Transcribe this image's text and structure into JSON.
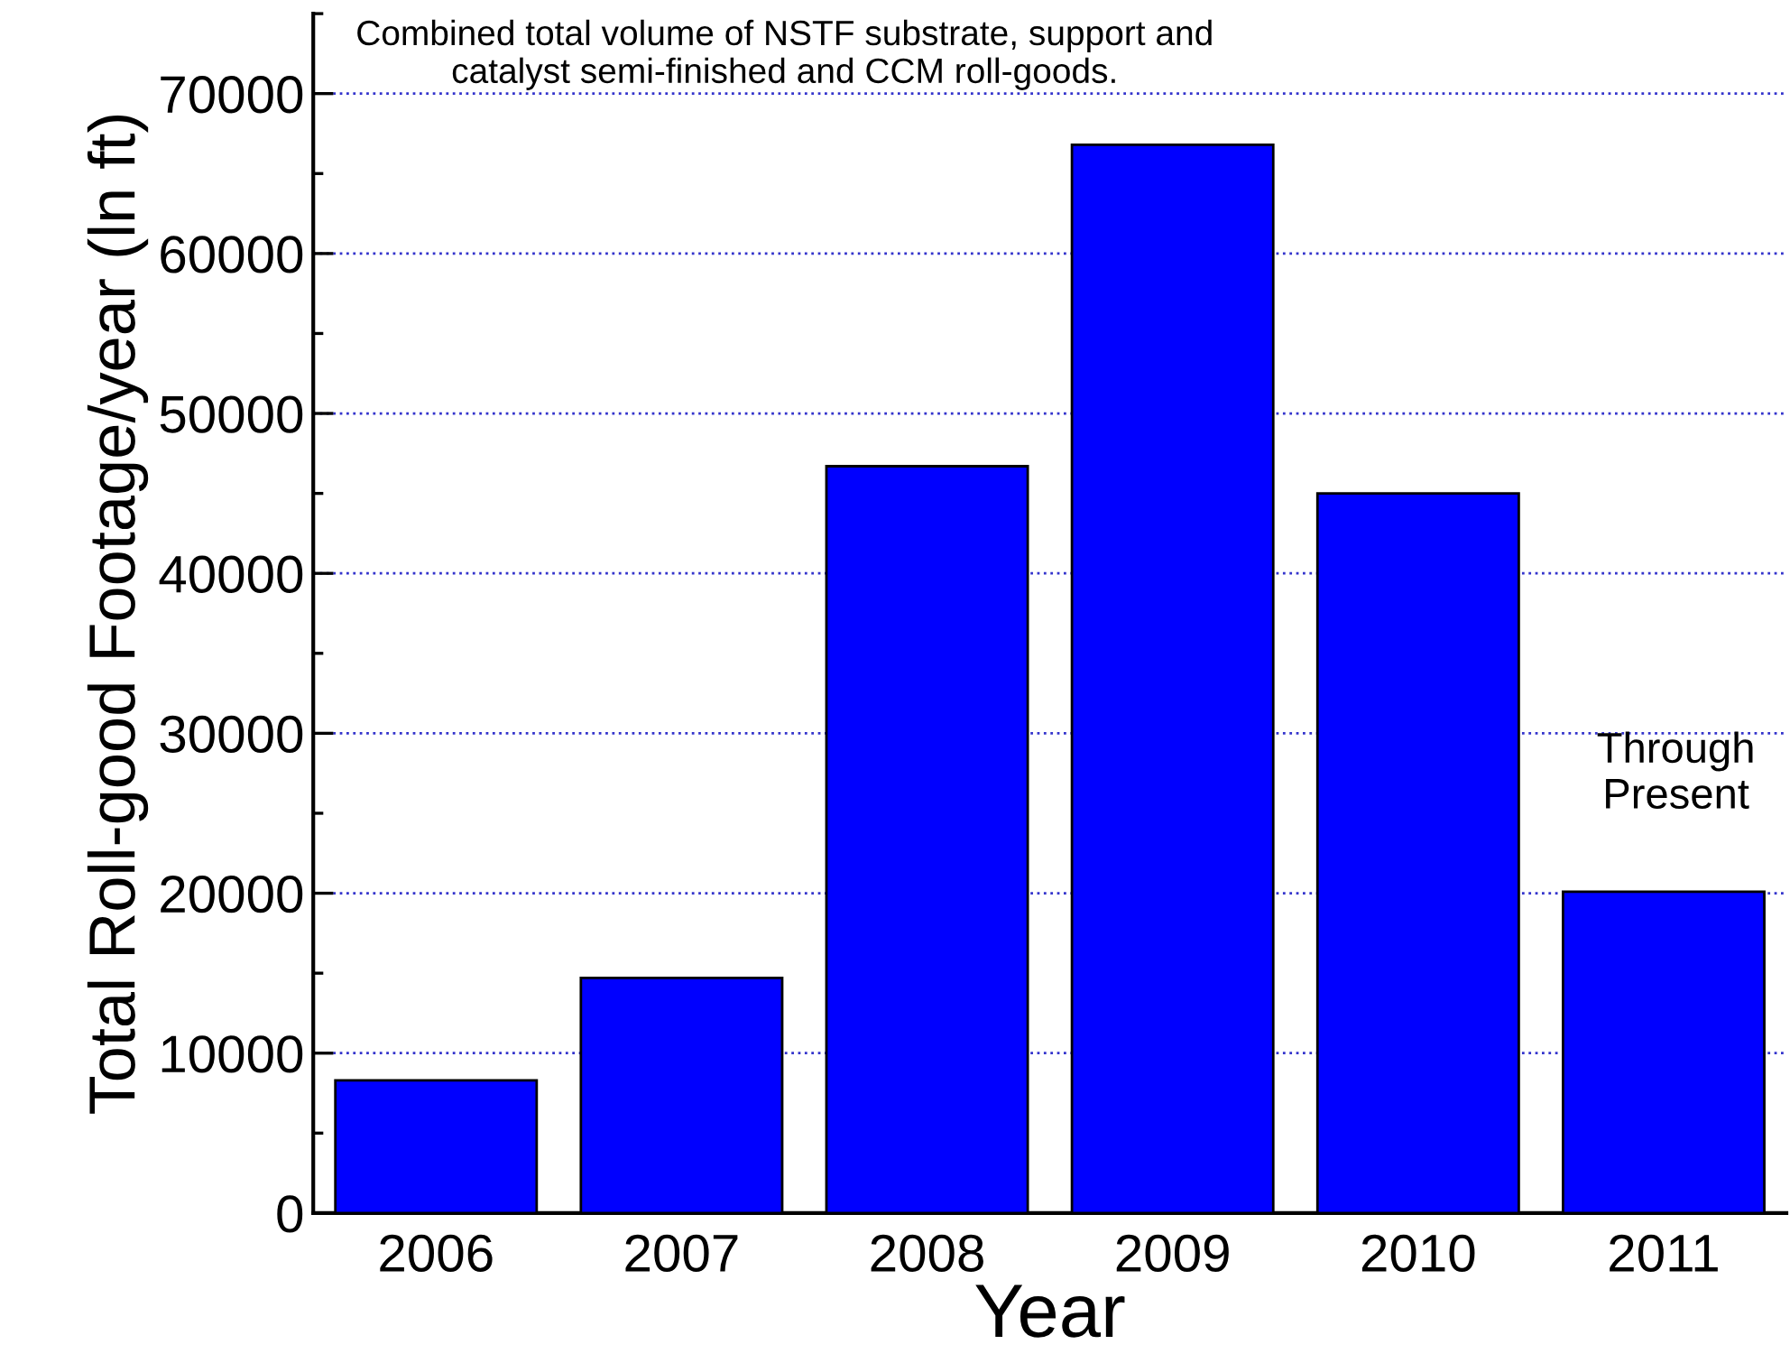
{
  "chart_data": {
    "type": "bar",
    "xlabel": "Year",
    "ylabel": "Total Roll-good Footage/year (ln ft)",
    "categories": [
      "2006",
      "2007",
      "2008",
      "2009",
      "2010",
      "2011"
    ],
    "values": [
      8300,
      14700,
      46700,
      66800,
      45000,
      20100
    ],
    "color": "#0000ff",
    "ylim": [
      0,
      75000
    ],
    "yticks": [
      0,
      10000,
      20000,
      30000,
      40000,
      50000,
      60000,
      70000
    ],
    "grid": "y",
    "annotations": [
      "Combined total volume of NSTF substrate, support and\ncatalyst semi-finished and CCM roll-goods.",
      "Through\nPresent"
    ]
  }
}
